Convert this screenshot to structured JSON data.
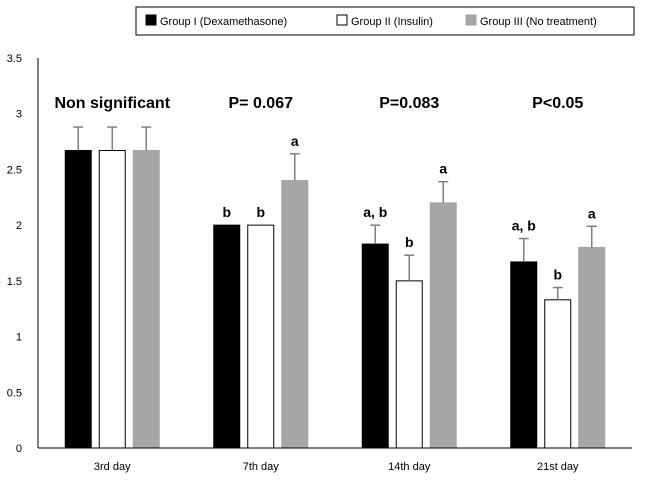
{
  "chart_data": {
    "type": "bar",
    "title": "",
    "xlabel": "",
    "ylabel": "",
    "ylim": [
      0,
      3.5
    ],
    "yticks": [
      "0",
      "0.5",
      "1",
      "1.5",
      "2",
      "2.5",
      "3",
      "3.5"
    ],
    "categories": [
      "3rd day",
      "7th day",
      "14th day",
      "21st day"
    ],
    "series": [
      {
        "name": "Group I (Dexamethasone)",
        "color": "#000000",
        "stroke": "#000000",
        "values": [
          2.67,
          2.0,
          1.83,
          1.67
        ],
        "errors": [
          0.21,
          0.0,
          0.17,
          0.21
        ],
        "labels": [
          "",
          "b",
          "a, b",
          "a, b"
        ]
      },
      {
        "name": "Group II (Insulin)",
        "color": "#ffffff",
        "stroke": "#000000",
        "values": [
          2.67,
          2.0,
          1.5,
          1.33
        ],
        "errors": [
          0.21,
          0.0,
          0.23,
          0.11
        ],
        "labels": [
          "",
          "b",
          "b",
          "b"
        ]
      },
      {
        "name": "Group III (No treatment)",
        "color": "#a6a6a6",
        "stroke": "#a6a6a6",
        "values": [
          2.67,
          2.4,
          2.2,
          1.8
        ],
        "errors": [
          0.21,
          0.24,
          0.19,
          0.19
        ],
        "labels": [
          "",
          "a",
          "a",
          "a"
        ]
      }
    ],
    "group_annotations": [
      "Non significant",
      "P= 0.067",
      "P=0.083",
      "P<0.05"
    ],
    "error_bar_color": "#808080",
    "legend_position": "top-right"
  }
}
